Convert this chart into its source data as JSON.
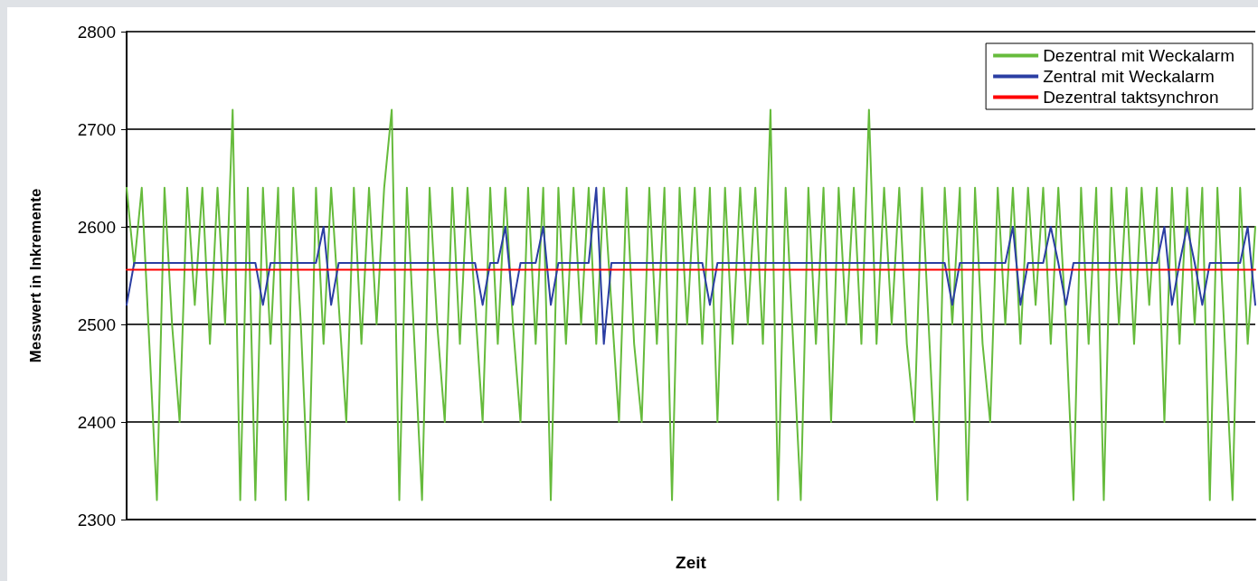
{
  "chart_data": {
    "type": "line",
    "xlabel": "Zeit",
    "ylabel": "Messwert in Inkremente",
    "ylim": [
      2300,
      2800
    ],
    "yticks": [
      2300,
      2400,
      2500,
      2600,
      2700,
      2800
    ],
    "grid": "y",
    "legend": "top right",
    "marker": "none",
    "line_style": "solid",
    "categories": [
      null,
      null,
      null,
      null,
      null,
      null,
      null,
      null,
      null,
      null,
      null,
      null,
      null,
      null,
      null,
      null,
      null,
      null,
      null,
      null,
      null,
      null,
      null,
      null,
      null,
      null,
      null,
      null,
      null,
      null,
      null,
      null,
      null,
      null,
      null,
      null,
      null,
      null,
      null,
      null,
      null,
      null,
      null,
      null,
      null,
      null,
      null,
      null,
      null,
      null,
      null,
      null,
      null,
      null,
      null,
      null,
      null,
      null,
      null,
      null,
      null,
      null,
      null,
      null,
      null,
      null,
      null,
      null,
      null,
      null,
      null,
      null,
      null,
      null,
      null,
      null,
      null,
      null,
      null,
      null,
      null,
      null,
      null,
      null,
      null,
      null,
      null,
      null,
      null,
      null,
      null,
      null,
      null,
      null,
      null,
      null,
      null,
      null,
      null,
      null,
      null,
      null,
      null,
      null,
      null,
      null,
      null,
      null,
      null,
      null,
      null,
      null,
      null,
      null,
      null,
      null,
      null,
      null,
      null,
      null,
      null,
      null,
      null,
      null,
      null,
      null,
      null,
      null,
      null,
      null,
      null,
      null,
      null,
      null,
      null,
      null,
      null,
      null,
      null,
      null,
      null,
      null,
      null,
      null,
      null,
      null,
      null,
      null,
      null,
      null
    ],
    "series": [
      {
        "name": "Dezentral mit Weckalarm",
        "color": "#66bb3c",
        "values": [
          2640,
          2560,
          2640,
          2480,
          2320,
          2640,
          2500,
          2400,
          2640,
          2520,
          2640,
          2480,
          2640,
          2500,
          2720,
          2320,
          2640,
          2320,
          2640,
          2480,
          2640,
          2320,
          2640,
          2500,
          2320,
          2640,
          2480,
          2640,
          2520,
          2400,
          2640,
          2480,
          2640,
          2500,
          2640,
          2720,
          2320,
          2640,
          2480,
          2320,
          2640,
          2500,
          2400,
          2640,
          2480,
          2640,
          2520,
          2400,
          2640,
          2480,
          2640,
          2500,
          2400,
          2640,
          2480,
          2640,
          2320,
          2640,
          2480,
          2640,
          2500,
          2640,
          2480,
          2640,
          2520,
          2400,
          2640,
          2480,
          2400,
          2640,
          2480,
          2640,
          2320,
          2640,
          2500,
          2640,
          2480,
          2640,
          2400,
          2640,
          2480,
          2640,
          2500,
          2640,
          2480,
          2720,
          2320,
          2640,
          2480,
          2320,
          2640,
          2480,
          2640,
          2400,
          2640,
          2500,
          2640,
          2480,
          2720,
          2480,
          2640,
          2500,
          2640,
          2480,
          2400,
          2640,
          2480,
          2320,
          2640,
          2500,
          2640,
          2320,
          2640,
          2480,
          2400,
          2640,
          2500,
          2640,
          2480,
          2640,
          2520,
          2640,
          2480,
          2640,
          2500,
          2320,
          2640,
          2480,
          2640,
          2320,
          2640,
          2500,
          2640,
          2480,
          2640,
          2520,
          2640,
          2400,
          2640,
          2480,
          2640,
          2500,
          2640,
          2320,
          2640,
          2480,
          2320,
          2640,
          2480,
          2600
        ]
      },
      {
        "name": "Zentral mit Weckalarm",
        "color": "#2b3ea3",
        "values": [
          2520,
          2563,
          2563,
          2563,
          2563,
          2563,
          2563,
          2563,
          2563,
          2563,
          2563,
          2563,
          2563,
          2563,
          2563,
          2563,
          2563,
          2563,
          2520,
          2563,
          2563,
          2563,
          2563,
          2563,
          2563,
          2563,
          2600,
          2520,
          2563,
          2563,
          2563,
          2563,
          2563,
          2563,
          2563,
          2563,
          2563,
          2563,
          2563,
          2563,
          2563,
          2563,
          2563,
          2563,
          2563,
          2563,
          2563,
          2520,
          2563,
          2563,
          2600,
          2520,
          2563,
          2563,
          2563,
          2600,
          2520,
          2563,
          2563,
          2563,
          2563,
          2563,
          2640,
          2480,
          2563,
          2563,
          2563,
          2563,
          2563,
          2563,
          2563,
          2563,
          2563,
          2563,
          2563,
          2563,
          2563,
          2520,
          2563,
          2563,
          2563,
          2563,
          2563,
          2563,
          2563,
          2563,
          2563,
          2563,
          2563,
          2563,
          2563,
          2563,
          2563,
          2563,
          2563,
          2563,
          2563,
          2563,
          2563,
          2563,
          2563,
          2563,
          2563,
          2563,
          2563,
          2563,
          2563,
          2563,
          2563,
          2520,
          2563,
          2563,
          2563,
          2563,
          2563,
          2563,
          2563,
          2600,
          2520,
          2563,
          2563,
          2563,
          2600,
          2563,
          2520,
          2563,
          2563,
          2563,
          2563,
          2563,
          2563,
          2563,
          2563,
          2563,
          2563,
          2563,
          2563,
          2600,
          2520,
          2563,
          2600,
          2563,
          2520,
          2563,
          2563,
          2563,
          2563,
          2563,
          2600,
          2520
        ]
      },
      {
        "name": "Dezentral taktsynchron",
        "color": "#ff0000",
        "values": [
          2556,
          2556,
          2556,
          2556,
          2556,
          2556,
          2556,
          2556,
          2556,
          2556,
          2556,
          2556,
          2556,
          2556,
          2556,
          2556,
          2556,
          2556,
          2556,
          2556,
          2556,
          2556,
          2556,
          2556,
          2556,
          2556,
          2556,
          2556,
          2556,
          2556,
          2556,
          2556,
          2556,
          2556,
          2556,
          2556,
          2556,
          2556,
          2556,
          2556,
          2556,
          2556,
          2556,
          2556,
          2556,
          2556,
          2556,
          2556,
          2556,
          2556,
          2556,
          2556,
          2556,
          2556,
          2556,
          2556,
          2556,
          2556,
          2556,
          2556,
          2556,
          2556,
          2556,
          2556,
          2556,
          2556,
          2556,
          2556,
          2556,
          2556,
          2556,
          2556,
          2556,
          2556,
          2556,
          2556,
          2556,
          2556,
          2556,
          2556,
          2556,
          2556,
          2556,
          2556,
          2556,
          2556,
          2556,
          2556,
          2556,
          2556,
          2556,
          2556,
          2556,
          2556,
          2556,
          2556,
          2556,
          2556,
          2556,
          2556,
          2556,
          2556,
          2556,
          2556,
          2556,
          2556,
          2556,
          2556,
          2556,
          2556,
          2556,
          2556,
          2556,
          2556,
          2556,
          2556,
          2556,
          2556,
          2556,
          2556,
          2556,
          2556,
          2556,
          2556,
          2556,
          2556,
          2556,
          2556,
          2556,
          2556,
          2556,
          2556,
          2556,
          2556,
          2556,
          2556,
          2556,
          2556,
          2556,
          2556,
          2556,
          2556,
          2556,
          2556,
          2556,
          2556,
          2556,
          2556,
          2556,
          2556
        ]
      }
    ]
  }
}
